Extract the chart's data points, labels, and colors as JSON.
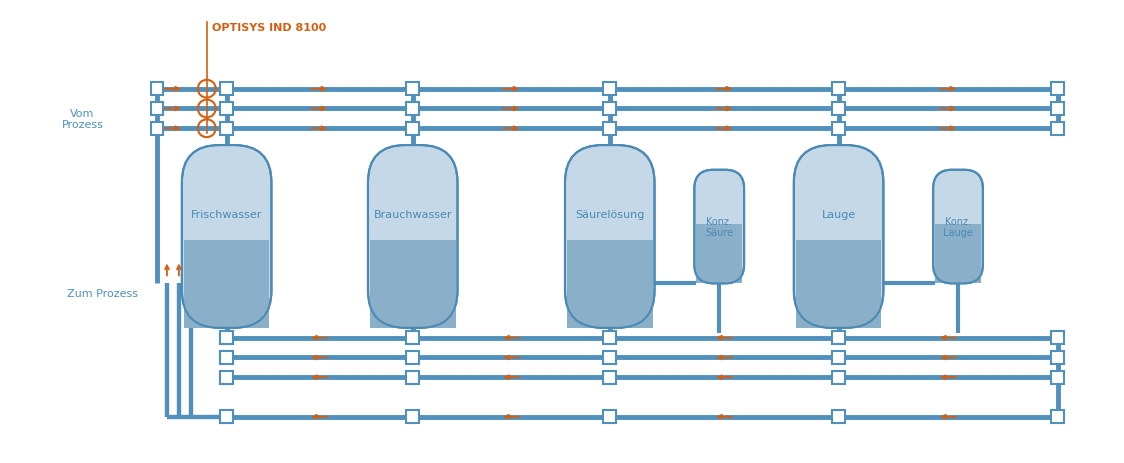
{
  "bg_color": "#ffffff",
  "pipe_color": "#5090bb",
  "pipe_color2": "#7ab0cc",
  "tank_fill_top": "#c5d8e8",
  "tank_fill_bottom": "#8aafc8",
  "tank_stroke": "#4a8ab5",
  "arrow_color": "#d45f10",
  "optisys_color": "#d45f10",
  "text_color": "#5090bb",
  "optisys_label": "OPTISYS IND 8100",
  "vom_prozess_label": "Vom\nProzess",
  "zum_prozess_label": "Zum Prozess",
  "tank_labels": [
    "Frischwasser",
    "Brauchwasser",
    "Säurelösung",
    "Lauge"
  ],
  "small_tank_labels": [
    "Konz.\nSäure",
    "Konz.\nLauge"
  ],
  "figw": 11.24,
  "figh": 4.64
}
